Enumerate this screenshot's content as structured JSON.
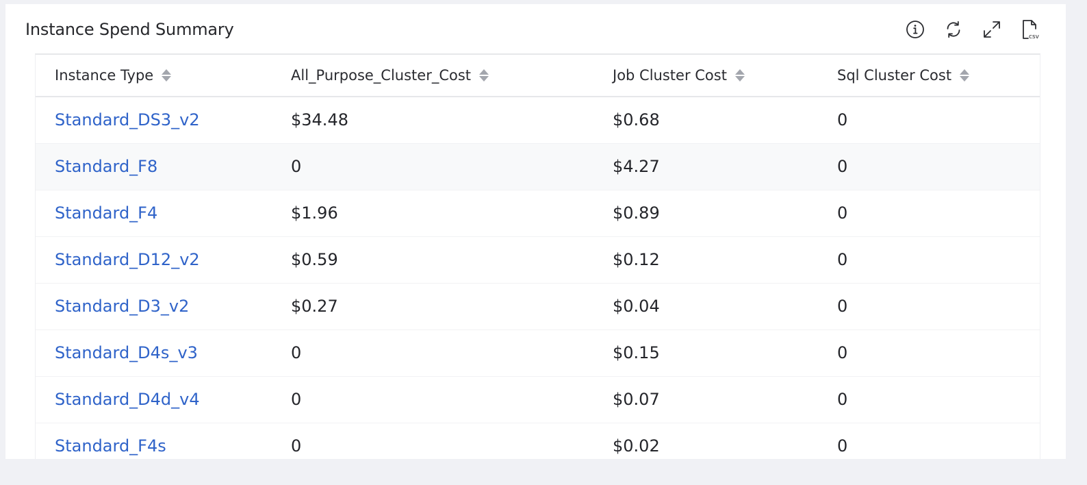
{
  "widget": {
    "title": "Instance Spend Summary"
  },
  "toolbar": {
    "info_icon": "info-icon",
    "refresh_icon": "refresh-icon",
    "expand_icon": "expand-icon",
    "csv_icon": "csv-download-icon",
    "csv_label": "csv"
  },
  "table": {
    "columns": [
      {
        "label": "Instance Type"
      },
      {
        "label": "All_Purpose_Cluster_Cost"
      },
      {
        "label": "Job Cluster Cost"
      },
      {
        "label": "Sql Cluster Cost"
      }
    ],
    "rows": [
      {
        "instance": "Standard_DS3_v2",
        "all_purpose": "$34.48",
        "job": "$0.68",
        "sql": "0"
      },
      {
        "instance": "Standard_F8",
        "all_purpose": "0",
        "job": "$4.27",
        "sql": "0"
      },
      {
        "instance": "Standard_F4",
        "all_purpose": "$1.96",
        "job": "$0.89",
        "sql": "0"
      },
      {
        "instance": "Standard_D12_v2",
        "all_purpose": "$0.59",
        "job": "$0.12",
        "sql": "0"
      },
      {
        "instance": "Standard_D3_v2",
        "all_purpose": "$0.27",
        "job": "$0.04",
        "sql": "0"
      },
      {
        "instance": "Standard_D4s_v3",
        "all_purpose": "0",
        "job": "$0.15",
        "sql": "0"
      },
      {
        "instance": "Standard_D4d_v4",
        "all_purpose": "0",
        "job": "$0.07",
        "sql": "0"
      },
      {
        "instance": "Standard_F4s",
        "all_purpose": "0",
        "job": "$0.02",
        "sql": "0"
      }
    ]
  },
  "colors": {
    "link": "#2f63c9",
    "text": "#24252a",
    "page_bg": "#f0f1f5",
    "row_alt": "#f8f9fa"
  }
}
